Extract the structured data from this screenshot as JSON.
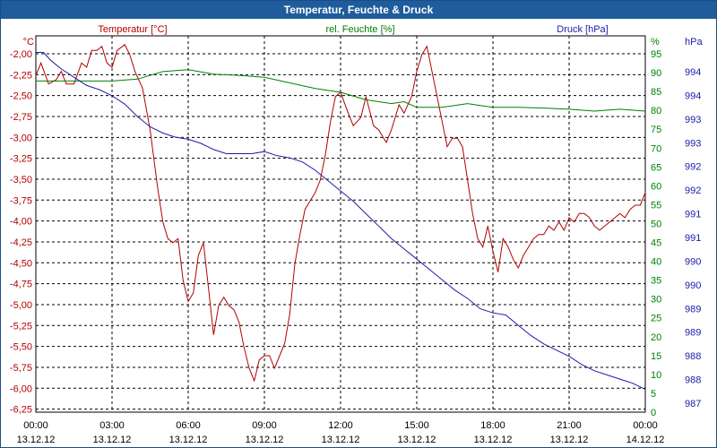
{
  "window_title": "Temperatur, Feuchte & Druck",
  "colors": {
    "temperature": "#b30000",
    "humidity": "#008000",
    "pressure": "#1c1ca8",
    "title_bar": "#1f5c9c"
  },
  "chart_data": {
    "type": "line",
    "title": "Temperatur, Feuchte & Druck",
    "grid": true,
    "x_ticks": [
      {
        "time": "00:00",
        "date": "13.12.12"
      },
      {
        "time": "03:00",
        "date": "13.12.12"
      },
      {
        "time": "06:00",
        "date": "13.12.12"
      },
      {
        "time": "09:00",
        "date": "13.12.12"
      },
      {
        "time": "12:00",
        "date": "13.12.12"
      },
      {
        "time": "15:00",
        "date": "13.12.12"
      },
      {
        "time": "18:00",
        "date": "13.12.12"
      },
      {
        "time": "21:00",
        "date": "13.12.12"
      },
      {
        "time": "00:00",
        "date": "14.12.12"
      }
    ],
    "x_range_hours": [
      0,
      24
    ],
    "axes": {
      "temperature": {
        "label": "Temperatur [°C]",
        "unit": "°C",
        "range": [
          -6.375,
          -1.875
        ],
        "ticks": [
          "-2,00",
          "-2,25",
          "-2,50",
          "-2,75",
          "-3,00",
          "-3,25",
          "-3,50",
          "-3,75",
          "-4,00",
          "-4,25",
          "-4,50",
          "-4,75",
          "-5,00",
          "-5,25",
          "-5,50",
          "-5,75",
          "-6,00",
          "-6,25"
        ]
      },
      "humidity": {
        "label": "rel. Feuchte [%]",
        "unit": "%",
        "range": [
          0,
          100
        ],
        "ticks": [
          "95",
          "90",
          "85",
          "80",
          "75",
          "70",
          "65",
          "60",
          "55",
          "50",
          "45",
          "40",
          "35",
          "30",
          "25",
          "20",
          "15",
          "10",
          "5",
          "0"
        ]
      },
      "pressure": {
        "label": "Druck [hPa]",
        "unit": "hPa",
        "range": [
          986.7,
          995.8
        ],
        "ticks": [
          "994",
          "994",
          "993",
          "993",
          "992",
          "992",
          "991",
          "991",
          "990",
          "990",
          "989",
          "989",
          "988",
          "988",
          "987"
        ]
      }
    },
    "series": [
      {
        "name": "Temperatur [°C]",
        "axis": "temperature",
        "points": [
          [
            0.0,
            -2.35
          ],
          [
            0.2,
            -2.2
          ],
          [
            0.5,
            -2.45
          ],
          [
            0.8,
            -2.4
          ],
          [
            1.0,
            -2.3
          ],
          [
            1.2,
            -2.45
          ],
          [
            1.5,
            -2.45
          ],
          [
            1.8,
            -2.2
          ],
          [
            2.0,
            -2.25
          ],
          [
            2.2,
            -2.05
          ],
          [
            2.4,
            -2.05
          ],
          [
            2.6,
            -2.0
          ],
          [
            2.8,
            -2.2
          ],
          [
            3.0,
            -2.25
          ],
          [
            3.2,
            -2.05
          ],
          [
            3.5,
            -1.98
          ],
          [
            3.7,
            -2.1
          ],
          [
            3.9,
            -2.3
          ],
          [
            4.2,
            -2.5
          ],
          [
            4.5,
            -3.0
          ],
          [
            4.8,
            -3.7
          ],
          [
            5.0,
            -4.1
          ],
          [
            5.2,
            -4.3
          ],
          [
            5.4,
            -4.35
          ],
          [
            5.6,
            -4.3
          ],
          [
            5.8,
            -4.8
          ],
          [
            6.0,
            -5.05
          ],
          [
            6.2,
            -4.95
          ],
          [
            6.4,
            -4.5
          ],
          [
            6.6,
            -4.35
          ],
          [
            6.8,
            -4.9
          ],
          [
            7.0,
            -5.45
          ],
          [
            7.2,
            -5.1
          ],
          [
            7.4,
            -5.0
          ],
          [
            7.6,
            -5.1
          ],
          [
            7.8,
            -5.15
          ],
          [
            8.0,
            -5.3
          ],
          [
            8.2,
            -5.6
          ],
          [
            8.4,
            -5.85
          ],
          [
            8.6,
            -6.0
          ],
          [
            8.8,
            -5.75
          ],
          [
            9.0,
            -5.7
          ],
          [
            9.2,
            -5.7
          ],
          [
            9.4,
            -5.85
          ],
          [
            9.6,
            -5.7
          ],
          [
            9.8,
            -5.55
          ],
          [
            10.0,
            -5.2
          ],
          [
            10.2,
            -4.6
          ],
          [
            10.4,
            -4.25
          ],
          [
            10.6,
            -3.95
          ],
          [
            10.8,
            -3.85
          ],
          [
            11.0,
            -3.75
          ],
          [
            11.2,
            -3.6
          ],
          [
            11.4,
            -3.3
          ],
          [
            11.6,
            -2.9
          ],
          [
            11.8,
            -2.6
          ],
          [
            12.0,
            -2.55
          ],
          [
            12.3,
            -2.8
          ],
          [
            12.5,
            -2.95
          ],
          [
            12.8,
            -2.85
          ],
          [
            13.0,
            -2.6
          ],
          [
            13.3,
            -2.95
          ],
          [
            13.5,
            -3.0
          ],
          [
            13.8,
            -3.15
          ],
          [
            14.0,
            -3.0
          ],
          [
            14.3,
            -2.7
          ],
          [
            14.5,
            -2.8
          ],
          [
            14.8,
            -2.6
          ],
          [
            15.0,
            -2.3
          ],
          [
            15.2,
            -2.1
          ],
          [
            15.4,
            -2.0
          ],
          [
            15.6,
            -2.3
          ],
          [
            15.8,
            -2.6
          ],
          [
            16.0,
            -2.9
          ],
          [
            16.2,
            -3.2
          ],
          [
            16.4,
            -3.1
          ],
          [
            16.6,
            -3.1
          ],
          [
            16.8,
            -3.2
          ],
          [
            17.0,
            -3.6
          ],
          [
            17.2,
            -4.0
          ],
          [
            17.4,
            -4.3
          ],
          [
            17.6,
            -4.4
          ],
          [
            17.8,
            -4.15
          ],
          [
            18.0,
            -4.45
          ],
          [
            18.2,
            -4.7
          ],
          [
            18.4,
            -4.3
          ],
          [
            18.6,
            -4.4
          ],
          [
            18.8,
            -4.55
          ],
          [
            19.0,
            -4.65
          ],
          [
            19.2,
            -4.5
          ],
          [
            19.4,
            -4.4
          ],
          [
            19.6,
            -4.3
          ],
          [
            19.8,
            -4.25
          ],
          [
            20.0,
            -4.25
          ],
          [
            20.2,
            -4.15
          ],
          [
            20.4,
            -4.2
          ],
          [
            20.6,
            -4.1
          ],
          [
            20.8,
            -4.2
          ],
          [
            21.0,
            -4.05
          ],
          [
            21.2,
            -4.1
          ],
          [
            21.4,
            -4.0
          ],
          [
            21.6,
            -4.0
          ],
          [
            21.8,
            -4.05
          ],
          [
            22.0,
            -4.15
          ],
          [
            22.2,
            -4.2
          ],
          [
            22.4,
            -4.15
          ],
          [
            22.6,
            -4.1
          ],
          [
            22.8,
            -4.05
          ],
          [
            23.0,
            -4.0
          ],
          [
            23.2,
            -4.05
          ],
          [
            23.4,
            -3.95
          ],
          [
            23.6,
            -3.9
          ],
          [
            23.8,
            -3.9
          ],
          [
            24.0,
            -3.75
          ]
        ]
      },
      {
        "name": "rel. Feuchte [%]",
        "axis": "humidity",
        "points": [
          [
            0.0,
            88
          ],
          [
            1.0,
            88
          ],
          [
            2.0,
            88
          ],
          [
            3.0,
            88
          ],
          [
            4.0,
            88.5
          ],
          [
            5.0,
            90.5
          ],
          [
            6.0,
            91
          ],
          [
            7.0,
            89.8
          ],
          [
            8.0,
            89.5
          ],
          [
            9.0,
            89
          ],
          [
            10.0,
            87.5
          ],
          [
            11.0,
            86
          ],
          [
            12.0,
            85
          ],
          [
            13.0,
            83
          ],
          [
            14.0,
            82
          ],
          [
            14.5,
            82.5
          ],
          [
            15.0,
            81
          ],
          [
            16.0,
            81
          ],
          [
            17.0,
            82
          ],
          [
            17.5,
            81.5
          ],
          [
            18.0,
            81
          ],
          [
            19.0,
            81
          ],
          [
            20.0,
            80.8
          ],
          [
            21.0,
            80.5
          ],
          [
            22.0,
            80
          ],
          [
            23.0,
            80.5
          ],
          [
            24.0,
            80
          ]
        ]
      },
      {
        "name": "Druck [hPa]",
        "axis": "pressure",
        "points": [
          [
            0.0,
            995.4
          ],
          [
            0.3,
            995.4
          ],
          [
            0.6,
            995.2
          ],
          [
            1.0,
            995.0
          ],
          [
            1.5,
            994.8
          ],
          [
            2.0,
            994.6
          ],
          [
            2.5,
            994.5
          ],
          [
            3.0,
            994.35
          ],
          [
            3.5,
            994.15
          ],
          [
            4.0,
            993.85
          ],
          [
            4.5,
            993.6
          ],
          [
            5.0,
            993.45
          ],
          [
            5.5,
            993.35
          ],
          [
            6.0,
            993.3
          ],
          [
            6.5,
            993.2
          ],
          [
            7.0,
            993.05
          ],
          [
            7.5,
            992.95
          ],
          [
            8.0,
            992.95
          ],
          [
            8.5,
            992.95
          ],
          [
            9.0,
            993.0
          ],
          [
            9.5,
            992.9
          ],
          [
            10.0,
            992.85
          ],
          [
            10.5,
            992.75
          ],
          [
            11.0,
            992.55
          ],
          [
            11.5,
            992.3
          ],
          [
            12.0,
            992.05
          ],
          [
            12.5,
            991.8
          ],
          [
            13.0,
            991.5
          ],
          [
            13.5,
            991.2
          ],
          [
            14.0,
            990.9
          ],
          [
            14.5,
            990.65
          ],
          [
            15.0,
            990.4
          ],
          [
            15.5,
            990.15
          ],
          [
            16.0,
            989.9
          ],
          [
            16.5,
            989.65
          ],
          [
            17.0,
            989.45
          ],
          [
            17.5,
            989.2
          ],
          [
            18.0,
            989.1
          ],
          [
            18.5,
            989.05
          ],
          [
            19.0,
            988.8
          ],
          [
            19.5,
            988.55
          ],
          [
            20.0,
            988.35
          ],
          [
            20.5,
            988.2
          ],
          [
            21.0,
            988.05
          ],
          [
            21.5,
            987.85
          ],
          [
            22.0,
            987.7
          ],
          [
            22.5,
            987.6
          ],
          [
            23.0,
            987.5
          ],
          [
            23.5,
            987.4
          ],
          [
            24.0,
            987.25
          ]
        ]
      }
    ]
  }
}
